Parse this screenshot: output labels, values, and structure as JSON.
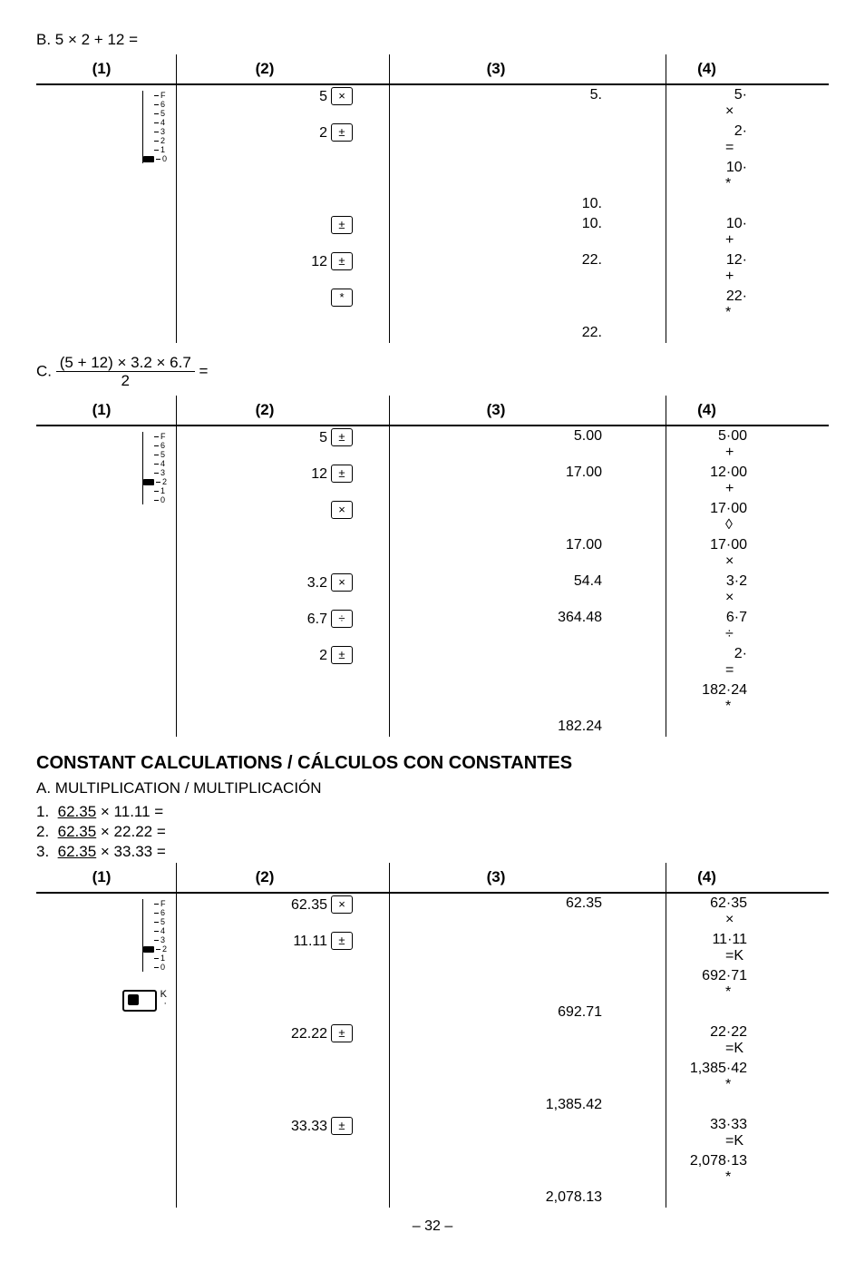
{
  "problemB": {
    "label": "B.  5 × 2 + 12 =",
    "headers": [
      "(1)",
      "(2)",
      "(3)",
      "(4)"
    ],
    "selector": {
      "labels": [
        "F",
        "6",
        "5",
        "4",
        "3",
        "2",
        "1",
        "0"
      ],
      "knob_at": 7
    },
    "col2": [
      {
        "n": "5",
        "k": "×"
      },
      {
        "n": "2",
        "k": "±"
      },
      {
        "n": "",
        "k": ""
      },
      {
        "n": "",
        "k": ""
      },
      {
        "n": "",
        "k": "±"
      },
      {
        "n": "12",
        "k": "±"
      },
      {
        "n": "",
        "k": "*"
      }
    ],
    "col3": [
      "5.",
      "",
      "",
      "10.",
      "10.",
      "22.",
      "",
      "22."
    ],
    "col4": [
      {
        "v": "5·",
        "o": "×"
      },
      {
        "v": "2·",
        "o": "="
      },
      {
        "v": "10·",
        "o": "*"
      },
      {
        "v": "",
        "o": ""
      },
      {
        "v": "10·",
        "o": "+"
      },
      {
        "v": "12·",
        "o": "+"
      },
      {
        "v": "22·",
        "o": "*"
      }
    ]
  },
  "problemC": {
    "label_prefix": "C.",
    "frac_num": "(5 + 12) × 3.2 × 6.7",
    "frac_den": "2",
    "label_suffix": "  =",
    "headers": [
      "(1)",
      "(2)",
      "(3)",
      "(4)"
    ],
    "selector": {
      "labels": [
        "F",
        "6",
        "5",
        "4",
        "3",
        "2",
        "1",
        "0"
      ],
      "knob_at": 5
    },
    "col2": [
      {
        "n": "5",
        "k": "±"
      },
      {
        "n": "12",
        "k": "±"
      },
      {
        "n": "",
        "k": "×"
      },
      {
        "n": "",
        "k": ""
      },
      {
        "n": "3.2",
        "k": "×"
      },
      {
        "n": "6.7",
        "k": "÷"
      },
      {
        "n": "2",
        "k": "±"
      }
    ],
    "col3": [
      "5.00",
      "17.00",
      "",
      "17.00",
      "54.4",
      "364.48",
      "",
      "",
      "182.24"
    ],
    "col4": [
      {
        "v": "5·00",
        "o": "+"
      },
      {
        "v": "12·00",
        "o": "+"
      },
      {
        "v": "17·00",
        "o": "◊"
      },
      {
        "v": "17·00",
        "o": "×"
      },
      {
        "v": "3·2",
        "o": "×"
      },
      {
        "v": "6·7",
        "o": "÷"
      },
      {
        "v": "2·",
        "o": "="
      },
      {
        "v": "182·24",
        "o": "*"
      }
    ]
  },
  "section_title": "CONSTANT CALCULATIONS / CÁLCULOS CON CONSTANTES",
  "subsection_A": "A.  MULTIPLICATION / MULTIPLICACIÓN",
  "listA": [
    {
      "num": "1.",
      "u": "62.35",
      "rest": " × 11.11 ="
    },
    {
      "num": "2.",
      "u": "62.35",
      "rest": " × 22.22 ="
    },
    {
      "num": "3.",
      "u": "62.35",
      "rest": " × 33.33 ="
    }
  ],
  "tableA": {
    "headers": [
      "(1)",
      "(2)",
      "(3)",
      "(4)"
    ],
    "selector": {
      "labels": [
        "F",
        "6",
        "5",
        "4",
        "3",
        "2",
        "1",
        "0"
      ],
      "knob_at": 5
    },
    "kswitch_labels": [
      "K",
      "·"
    ],
    "col2": [
      {
        "n": "62.35",
        "k": "×"
      },
      {
        "n": "11.11",
        "k": "±"
      },
      {
        "n": "",
        "k": ""
      },
      {
        "n": "",
        "k": ""
      },
      {
        "n": "22.22",
        "k": "±"
      },
      {
        "n": "",
        "k": ""
      },
      {
        "n": "",
        "k": ""
      },
      {
        "n": "33.33",
        "k": "±"
      }
    ],
    "col3": [
      "62.35",
      "",
      "",
      "692.71",
      "",
      "",
      "1,385.42",
      "",
      "",
      "2,078.13"
    ],
    "col4": [
      {
        "v": "62·35",
        "o": "×"
      },
      {
        "v": "11·11",
        "o": "=K"
      },
      {
        "v": "692·71",
        "o": "*"
      },
      {
        "v": "",
        "o": ""
      },
      {
        "v": "22·22",
        "o": "=K"
      },
      {
        "v": "1,385·42",
        "o": "*"
      },
      {
        "v": "",
        "o": ""
      },
      {
        "v": "33·33",
        "o": "=K"
      },
      {
        "v": "2,078·13",
        "o": "*"
      }
    ]
  },
  "page_number": "– 32 –"
}
